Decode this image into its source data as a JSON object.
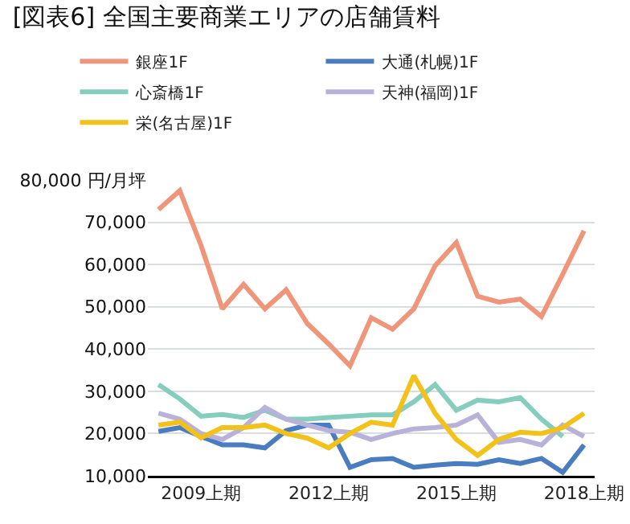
{
  "chart_data": {
    "type": "line",
    "title": "[図表6] 全国主要商業エリアの店舗賃料",
    "categories": [
      null,
      null,
      "2009上期",
      null,
      null,
      null,
      null,
      null,
      "2012上期",
      null,
      null,
      null,
      null,
      null,
      "2015上期",
      null,
      null,
      null,
      null,
      null,
      "2018上期"
    ],
    "series": [
      {
        "name": "銀座1F",
        "color": "#ef967a",
        "values": [
          73000,
          77500,
          64500,
          49500,
          55300,
          49500,
          54000,
          46000,
          41200,
          36000,
          47400,
          44700,
          49500,
          59700,
          65200,
          52500,
          51100,
          51800,
          47700,
          57700,
          68000
        ]
      },
      {
        "name": "大通(札幌)1F",
        "color": "#4a7cc0",
        "values": [
          20500,
          21400,
          19300,
          17300,
          17300,
          16600,
          20700,
          22000,
          22000,
          12000,
          13800,
          14100,
          12000,
          12500,
          12900,
          12700,
          13800,
          12900,
          14100,
          10800,
          17300
        ]
      },
      {
        "name": "心斎橋1F",
        "color": "#85cdbd",
        "values": [
          31600,
          28200,
          24100,
          24500,
          23800,
          25500,
          23400,
          23400,
          23800,
          24100,
          24400,
          24400,
          27500,
          31600,
          25500,
          27900,
          27500,
          28500,
          23400,
          19300,
          null
        ]
      },
      {
        "name": "天神(福岡)1F",
        "color": "#b9b2d8",
        "values": [
          24800,
          23400,
          20000,
          18600,
          21400,
          26200,
          23400,
          22000,
          20700,
          20300,
          18600,
          20000,
          21100,
          21400,
          22000,
          24400,
          17900,
          18600,
          17300,
          22000,
          19300
        ]
      },
      {
        "name": "栄(名古屋)1F",
        "color": "#f2c21b",
        "values": [
          22000,
          22700,
          19000,
          21400,
          21400,
          22000,
          20000,
          18900,
          16600,
          20000,
          22700,
          22000,
          33700,
          24800,
          18600,
          14800,
          18600,
          20300,
          20000,
          21400,
          24800
        ]
      }
    ],
    "ylim": [
      10000,
      80000
    ],
    "yticks": [
      {
        "value": 10000,
        "label": "10,000"
      },
      {
        "value": 20000,
        "label": "20,000"
      },
      {
        "value": 30000,
        "label": "30,000"
      },
      {
        "value": 40000,
        "label": "40,000"
      },
      {
        "value": 50000,
        "label": "50,000"
      },
      {
        "value": 60000,
        "label": "60,000"
      },
      {
        "value": 70000,
        "label": "70,000"
      },
      {
        "value": 80000,
        "label": "80,000 円/月坪"
      }
    ],
    "grid": "y",
    "legend": "top",
    "line_style": "solid",
    "marker": "none"
  }
}
